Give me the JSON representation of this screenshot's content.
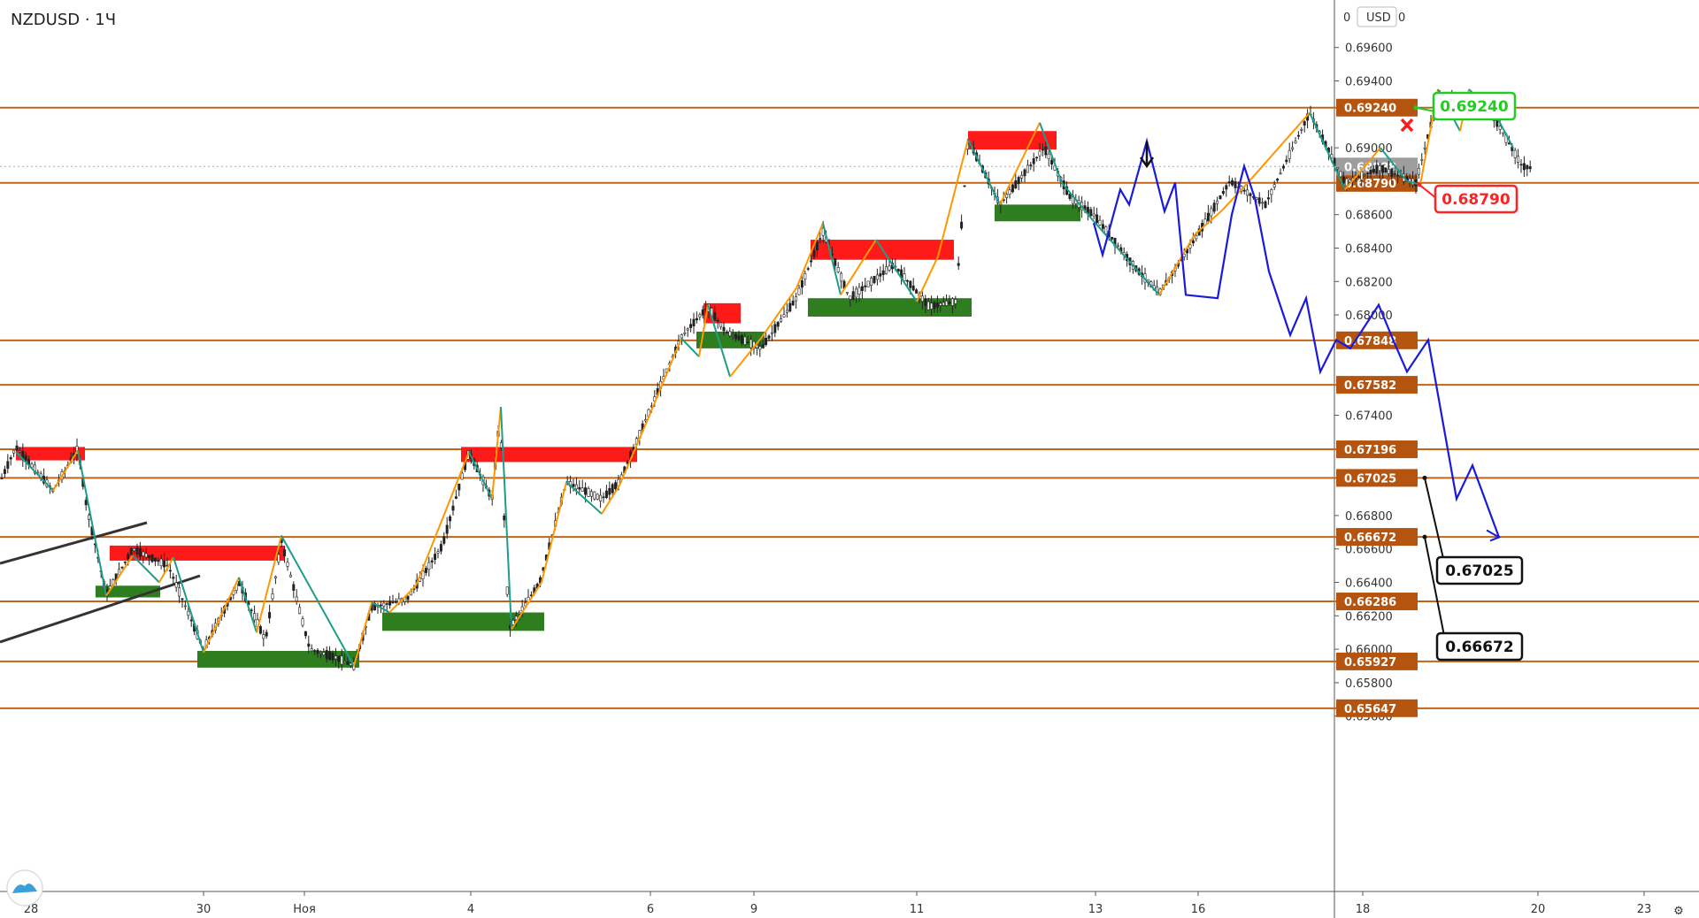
{
  "chart_data": {
    "type": "candlestick",
    "symbol_title": "NZDUSD · 1Ч",
    "currency_label": "USD",
    "y_axis_right_top_marker": "0",
    "ylim": [
      0.6548,
      0.6976
    ],
    "y_ticks": [
      "0.69600",
      "0.69400",
      "0.69000",
      "0.68600",
      "0.68400",
      "0.68200",
      "0.68000",
      "0.67400",
      "0.66800",
      "0.66600",
      "0.66400",
      "0.66200",
      "0.66000",
      "0.65800",
      "0.65600"
    ],
    "x_tick_labels": [
      "28",
      "30",
      "Ноя",
      "4",
      "6",
      "9",
      "11",
      "13",
      "16",
      "18",
      "20",
      "23"
    ],
    "horizontal_levels": [
      0.6924,
      0.6879,
      0.67848,
      0.67582,
      0.67196,
      0.67025,
      0.66672,
      0.66286,
      0.65927,
      0.65647
    ],
    "level_labels": [
      "0.69240",
      "0.68790",
      "0.67848",
      "0.67582",
      "0.67196",
      "0.67025",
      "0.66672",
      "0.66286",
      "0.65927",
      "0.65647"
    ],
    "current_price": 0.68888,
    "current_price_label": "0.68888",
    "callouts": [
      {
        "text": "0.69240",
        "color": "#22cc22",
        "price": 0.6924
      },
      {
        "text": "0.68790",
        "color": "#ff2222",
        "price": 0.6879
      },
      {
        "text": "0.67025",
        "color": "#111111",
        "price": 0.67025
      },
      {
        "text": "0.66672",
        "color": "#111111",
        "price": 0.66672
      }
    ],
    "supply_zones": [
      {
        "top": 0.6721,
        "bottom": 0.6713
      },
      {
        "top": 0.6662,
        "bottom": 0.6653
      },
      {
        "top": 0.6721,
        "bottom": 0.6712
      },
      {
        "top": 0.6807,
        "bottom": 0.6795
      },
      {
        "top": 0.6845,
        "bottom": 0.6833
      },
      {
        "top": 0.691,
        "bottom": 0.6899
      }
    ],
    "demand_zones": [
      {
        "top": 0.6638,
        "bottom": 0.6631
      },
      {
        "top": 0.6599,
        "bottom": 0.6589
      },
      {
        "top": 0.6622,
        "bottom": 0.6611
      },
      {
        "top": 0.679,
        "bottom": 0.678
      },
      {
        "top": 0.681,
        "bottom": 0.6799
      },
      {
        "top": 0.6866,
        "bottom": 0.6856
      }
    ],
    "projection_path_prices": [
      0.6855,
      0.6836,
      0.6875,
      0.6866,
      0.6904,
      0.6862,
      0.6879,
      0.6812,
      0.681,
      0.686,
      0.6889,
      0.687,
      0.6826,
      0.6788,
      0.681,
      0.6766,
      0.6785,
      0.678,
      0.6806,
      0.6783,
      0.6766,
      0.6785,
      0.669,
      0.671,
      0.6667
    ]
  },
  "colors": {
    "level_line": "#c0651a",
    "level_label_bg": "#b5540f",
    "supply": "#ff1a1a",
    "demand": "#2e7d1f",
    "zigzag_up": "#ff9800",
    "zigzag_down": "#1e9c8a",
    "projection": "#1a1adb",
    "candle": "#222222"
  }
}
